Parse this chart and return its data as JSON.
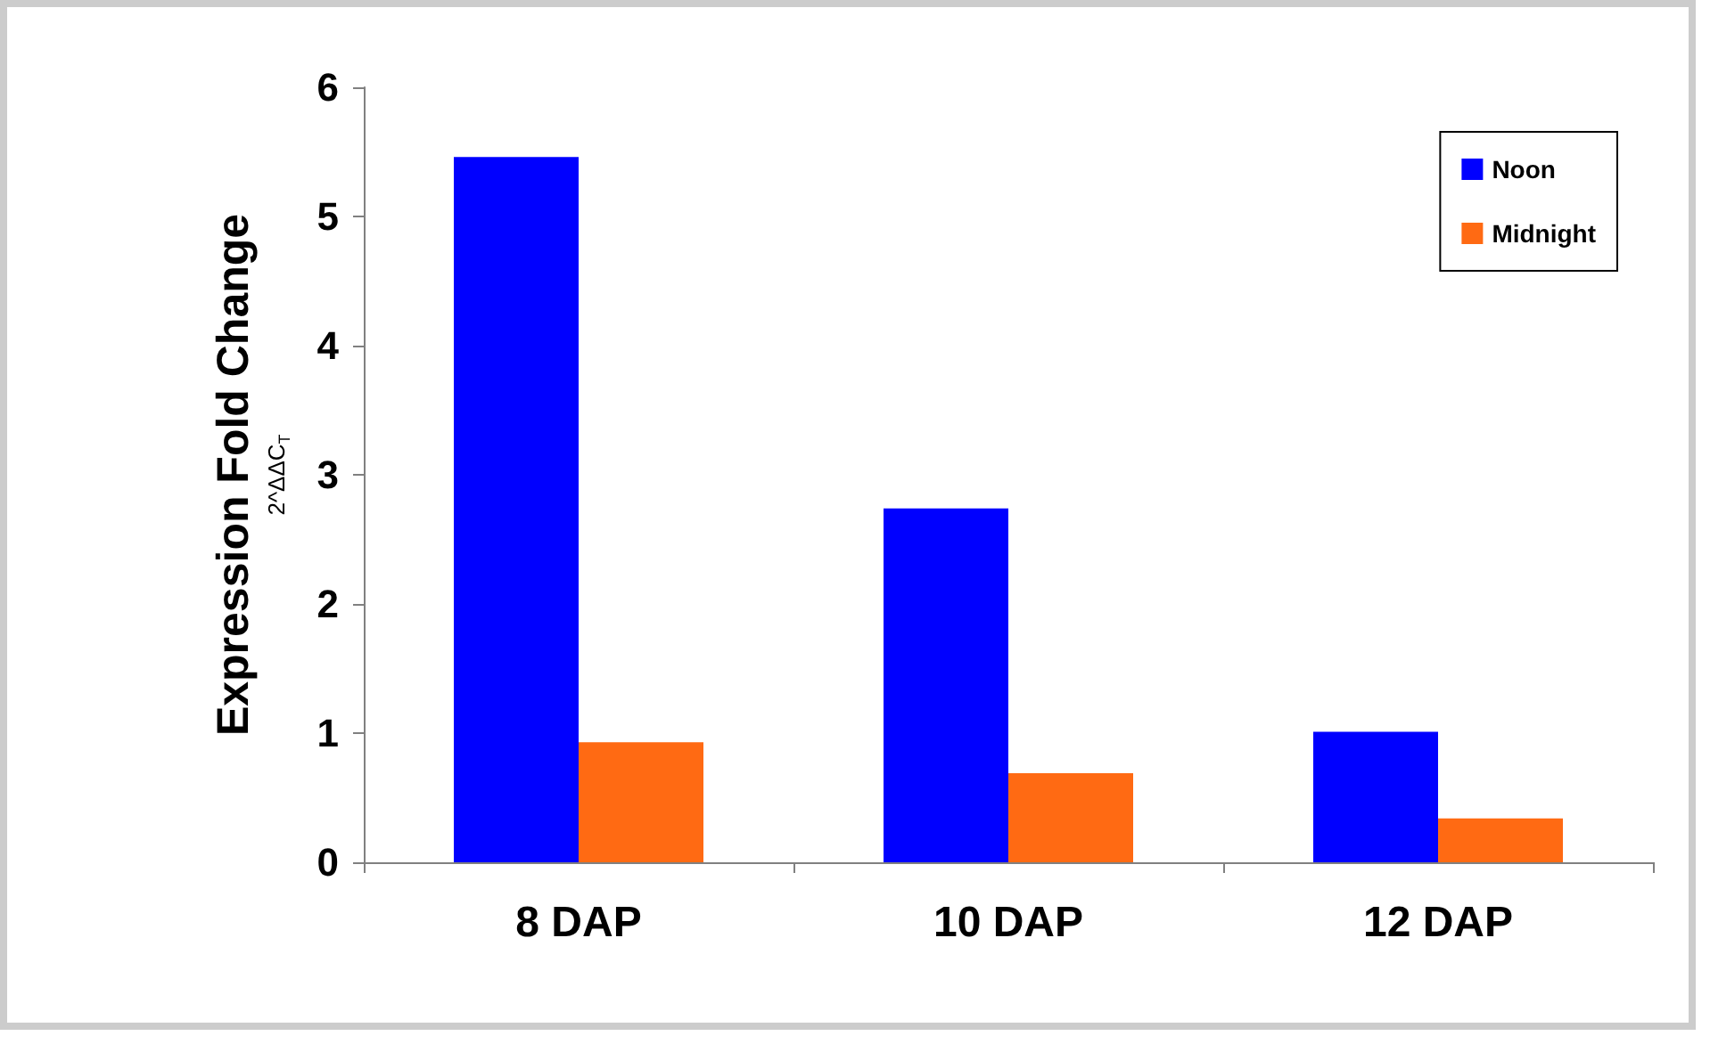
{
  "chart_data": {
    "type": "bar",
    "ylabel": "Expression Fold Change\n2^ΔΔC$_{T}$",
    "categories": [
      "8 DAP",
      "10 DAP",
      "12 DAP"
    ],
    "series": [
      {
        "name": "Noon",
        "color": "#0000ff",
        "values": [
          5.46,
          2.74,
          1.01
        ]
      },
      {
        "name": "Midnight",
        "color": "#ff6a13",
        "values": [
          0.93,
          0.69,
          0.34
        ]
      }
    ],
    "ylim": [
      0,
      6
    ],
    "yticks": [
      0,
      1,
      2,
      3,
      4,
      5,
      6
    ],
    "grid": false,
    "legend": "top right"
  }
}
